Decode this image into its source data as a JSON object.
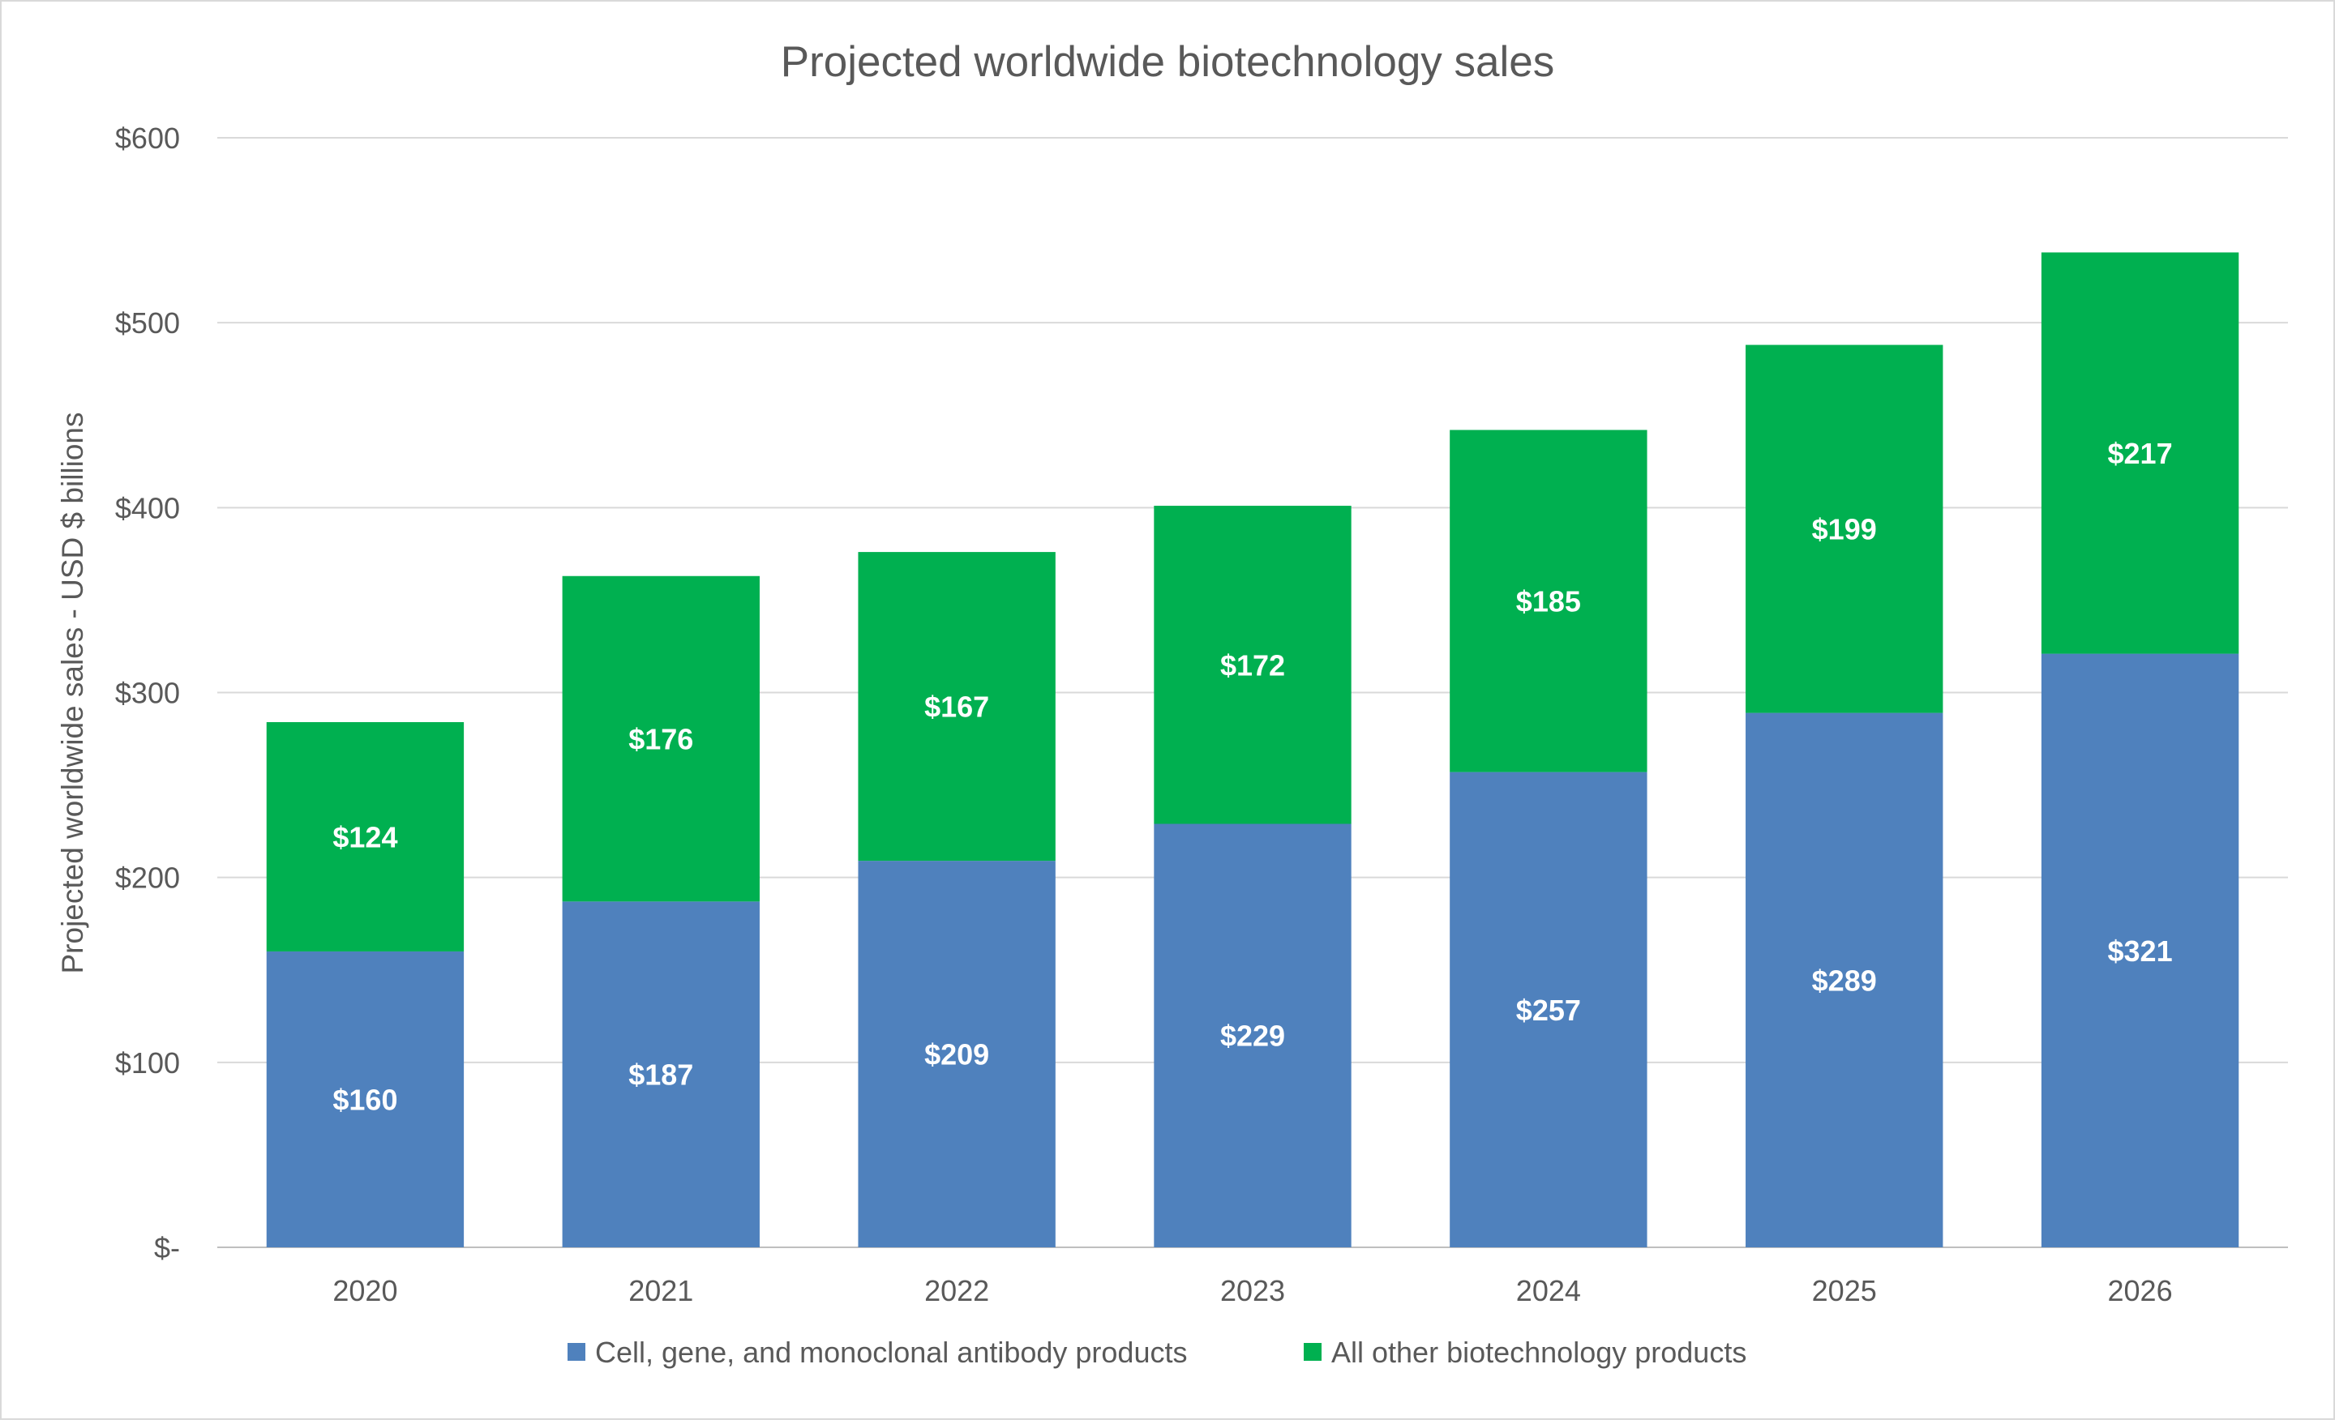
{
  "chart_data": {
    "type": "bar",
    "stacked": true,
    "title": "Projected worldwide biotechnology sales",
    "xlabel": "",
    "ylabel": "Projected worldwide sales - USD $ billions",
    "categories": [
      "2020",
      "2021",
      "2022",
      "2023",
      "2024",
      "2025",
      "2026"
    ],
    "series": [
      {
        "name": "Cell, gene, and monoclonal antibody products",
        "color": "#4F81BD",
        "values": [
          160,
          187,
          209,
          229,
          257,
          289,
          321
        ],
        "labels": [
          "$160",
          "$187",
          "$209",
          "$229",
          "$257",
          "$289",
          "$321"
        ]
      },
      {
        "name": "All other biotechnology products",
        "color": "#00B050",
        "values": [
          124,
          176,
          167,
          172,
          185,
          199,
          217
        ],
        "labels": [
          "$124",
          "$176",
          "$167",
          "$172",
          "$185",
          "$199",
          "$217"
        ]
      }
    ],
    "ylim": [
      0,
      600
    ],
    "yticks": [
      0,
      100,
      200,
      300,
      400,
      500,
      600
    ],
    "ytick_labels": [
      "$-",
      "$100",
      "$200",
      "$300",
      "$400",
      "$500",
      "$600"
    ],
    "grid": true,
    "legend": "bottom"
  }
}
